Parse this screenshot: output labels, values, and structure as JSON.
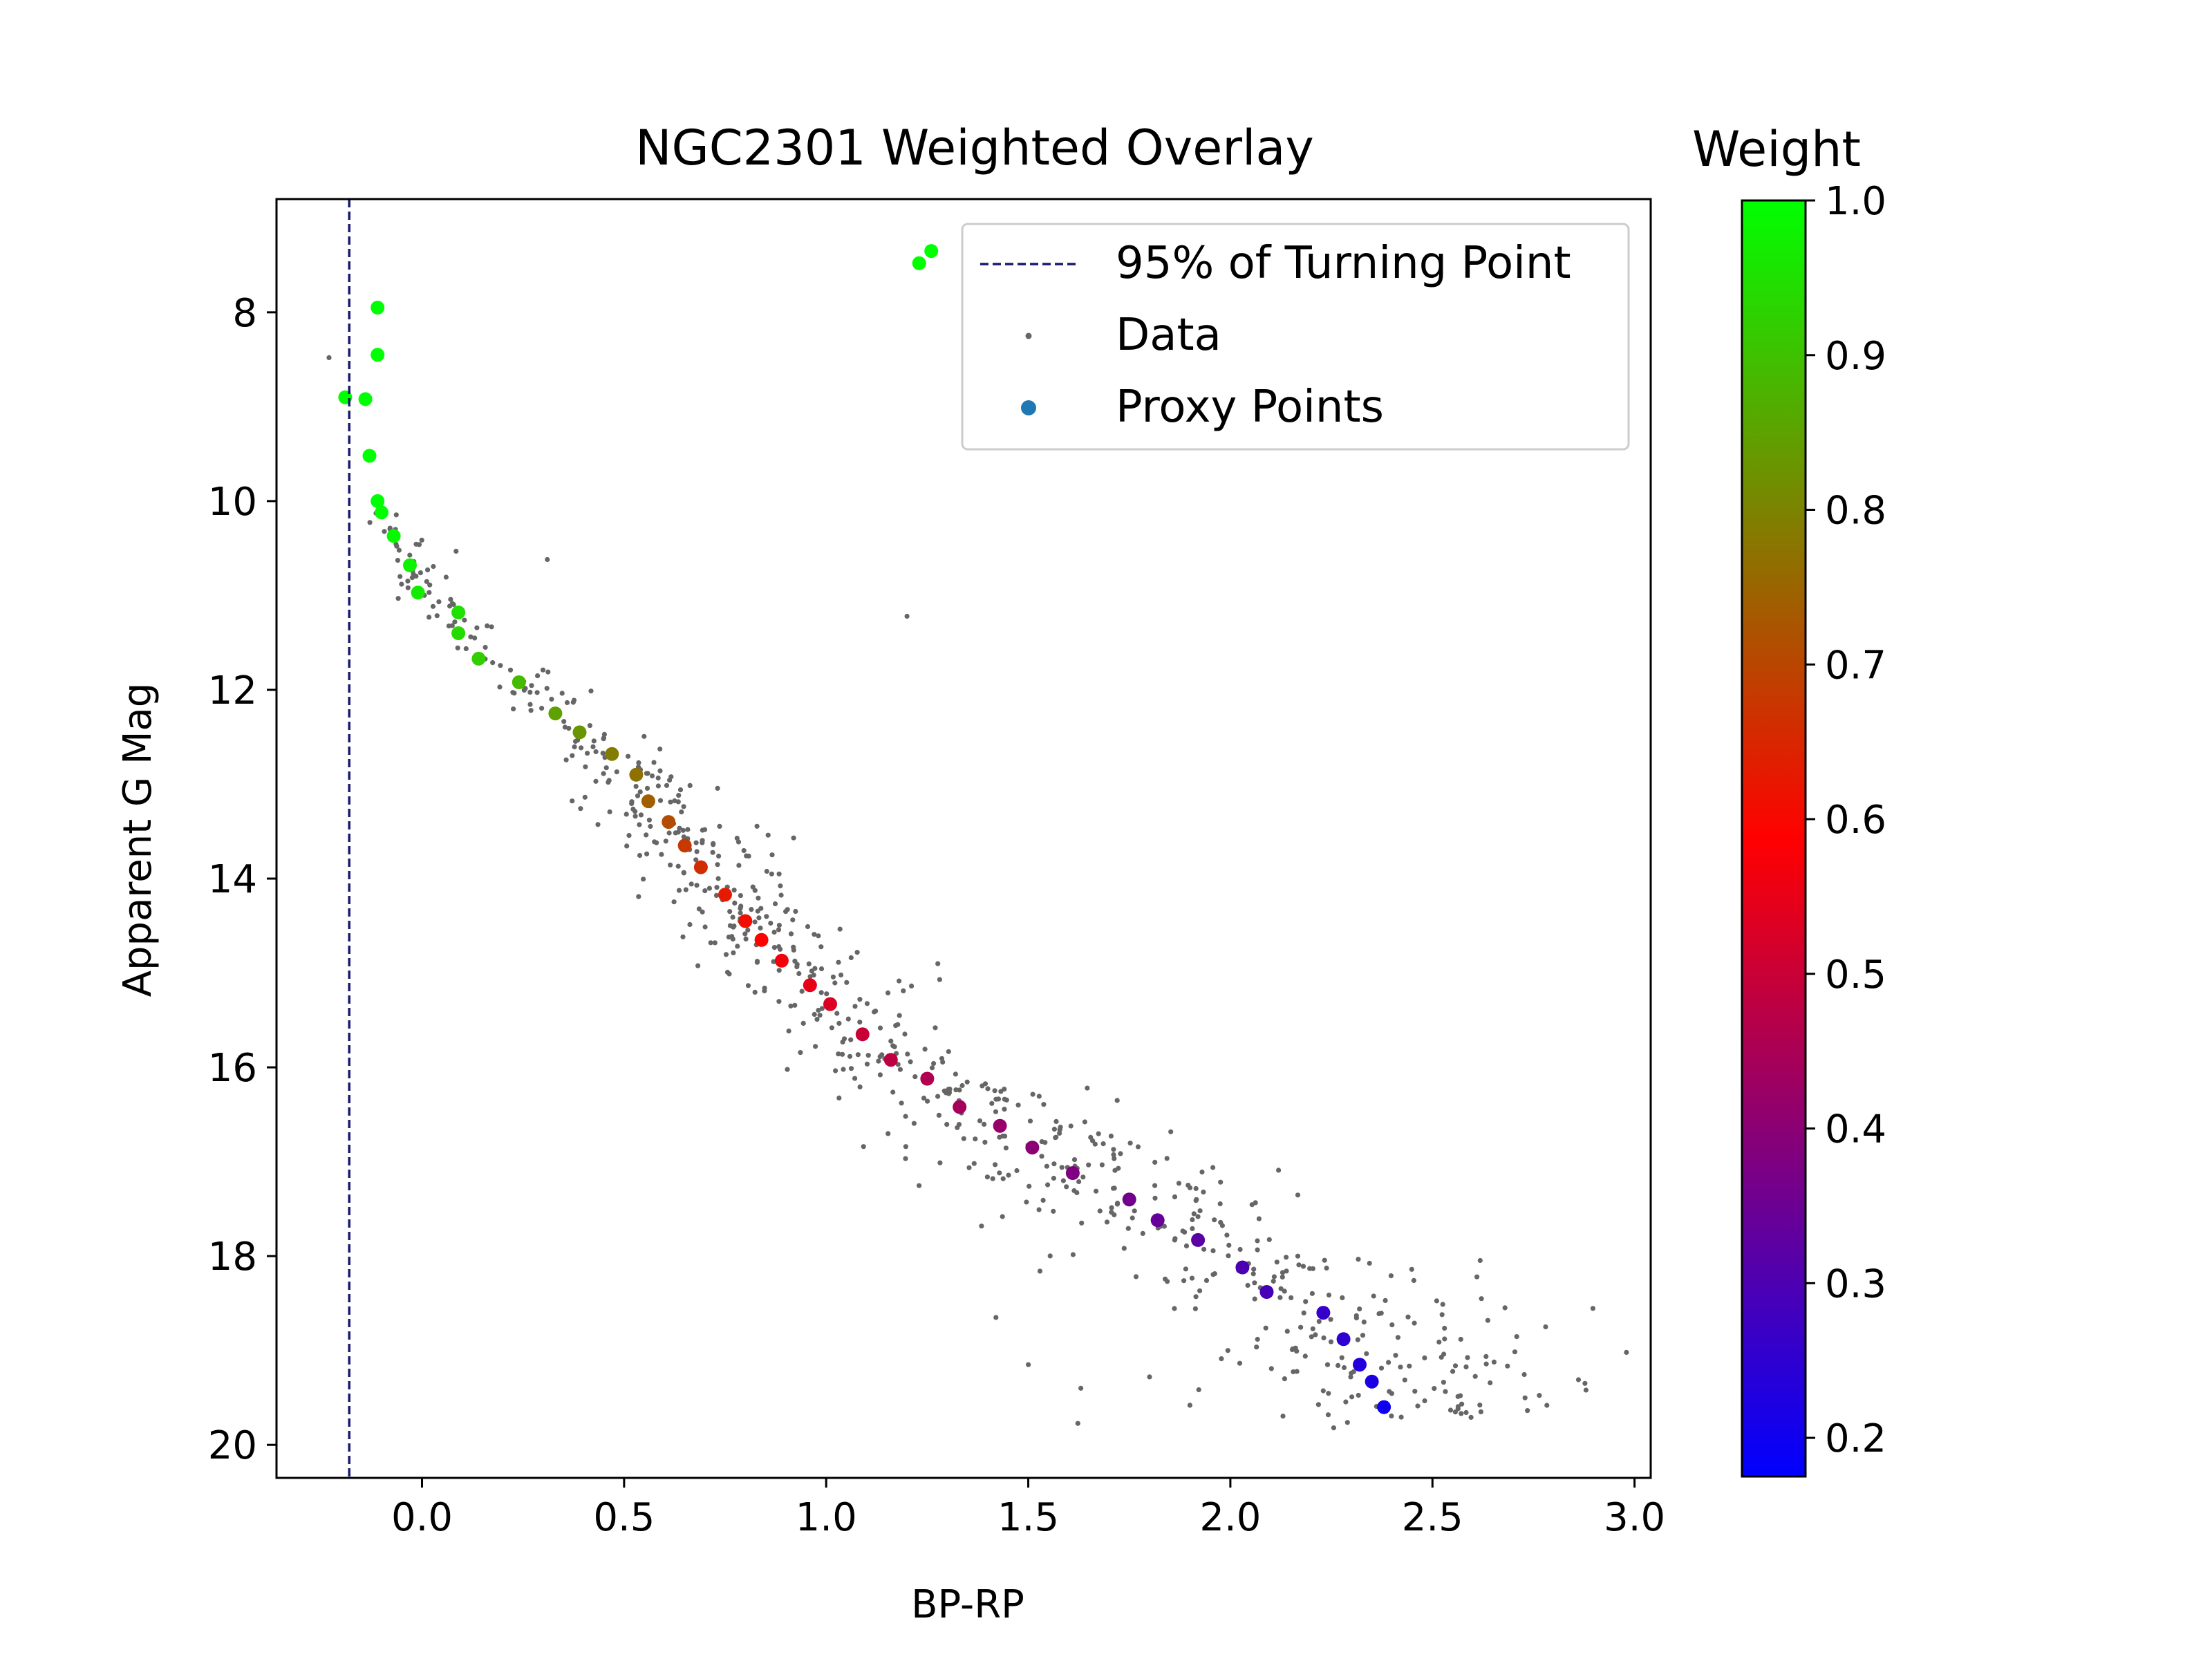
{
  "chart_data": {
    "type": "scatter",
    "title": "NGC2301 Weighted Overlay",
    "xlabel": "BP-RP",
    "ylabel": "Apparent G Mag",
    "xlim": [
      -0.36,
      3.04
    ],
    "ylim": [
      20.35,
      6.8
    ],
    "y_inverted": true,
    "grid": false,
    "legend_placement": "top-right",
    "xticks": [
      0.0,
      0.5,
      1.0,
      1.5,
      2.0,
      2.5,
      3.0
    ],
    "xtick_labels": [
      "0.0",
      "0.5",
      "1.0",
      "1.5",
      "2.0",
      "2.5",
      "3.0"
    ],
    "yticks": [
      8,
      10,
      12,
      14,
      16,
      18,
      20
    ],
    "ytick_labels": [
      "8",
      "10",
      "12",
      "14",
      "16",
      "18",
      "20"
    ],
    "vline": {
      "x": -0.18,
      "style": "dashed",
      "color": "#191970"
    },
    "legend": {
      "entries": [
        {
          "label": "95% of Turning Point",
          "kind": "dashed-line",
          "color": "#191970"
        },
        {
          "label": "Data",
          "kind": "small-dot",
          "color": "#666666"
        },
        {
          "label": "Proxy Points",
          "kind": "dot",
          "color": "#1f77b4"
        }
      ]
    },
    "colorbar": {
      "label": "Weight",
      "range": [
        0.175,
        1.0
      ],
      "ticks": [
        0.2,
        0.3,
        0.4,
        0.5,
        0.6,
        0.7,
        0.8,
        0.9,
        1.0
      ],
      "tick_labels": [
        "0.2",
        "0.3",
        "0.4",
        "0.5",
        "0.6",
        "0.7",
        "0.8",
        "0.9",
        "1.0"
      ],
      "colormap": "brg"
    },
    "proxy_points": [
      [
        -0.11,
        7.95,
        1.0
      ],
      [
        -0.11,
        8.45,
        1.0
      ],
      [
        -0.19,
        8.9,
        1.0
      ],
      [
        -0.14,
        8.92,
        1.0
      ],
      [
        -0.13,
        9.52,
        1.0
      ],
      [
        -0.11,
        10.0,
        1.0
      ],
      [
        -0.1,
        10.12,
        1.0
      ],
      [
        -0.07,
        10.37,
        0.99
      ],
      [
        -0.03,
        10.68,
        0.98
      ],
      [
        -0.01,
        10.97,
        0.97
      ],
      [
        0.09,
        11.18,
        0.95
      ],
      [
        0.09,
        11.4,
        0.94
      ],
      [
        0.14,
        11.67,
        0.92
      ],
      [
        0.24,
        11.92,
        0.89
      ],
      [
        0.33,
        12.25,
        0.85
      ],
      [
        0.39,
        12.45,
        0.83
      ],
      [
        0.47,
        12.68,
        0.79
      ],
      [
        0.53,
        12.9,
        0.77
      ],
      [
        0.56,
        13.18,
        0.74
      ],
      [
        0.61,
        13.4,
        0.71
      ],
      [
        0.65,
        13.65,
        0.68
      ],
      [
        0.69,
        13.88,
        0.66
      ],
      [
        0.75,
        14.17,
        0.63
      ],
      [
        0.8,
        14.45,
        0.61
      ],
      [
        0.84,
        14.65,
        0.59
      ],
      [
        0.89,
        14.87,
        0.57
      ],
      [
        0.96,
        15.13,
        0.55
      ],
      [
        1.01,
        15.33,
        0.53
      ],
      [
        1.09,
        15.65,
        0.5
      ],
      [
        1.16,
        15.92,
        0.48
      ],
      [
        1.25,
        16.12,
        0.46
      ],
      [
        1.33,
        16.42,
        0.44
      ],
      [
        1.43,
        16.62,
        0.42
      ],
      [
        1.51,
        16.85,
        0.4
      ],
      [
        1.61,
        17.12,
        0.38
      ],
      [
        1.75,
        17.4,
        0.36
      ],
      [
        1.82,
        17.62,
        0.34
      ],
      [
        1.92,
        17.83,
        0.32
      ],
      [
        2.03,
        18.12,
        0.3
      ],
      [
        2.09,
        18.38,
        0.29
      ],
      [
        2.23,
        18.6,
        0.26
      ],
      [
        2.28,
        18.88,
        0.25
      ],
      [
        2.32,
        19.15,
        0.23
      ],
      [
        2.35,
        19.33,
        0.22
      ],
      [
        2.38,
        19.6,
        0.2
      ],
      [
        1.23,
        7.48,
        1.0
      ],
      [
        1.26,
        7.35,
        1.0
      ]
    ],
    "outliers": [
      [
        -0.23,
        8.48
      ],
      [
        0.31,
        10.62
      ],
      [
        1.2,
        11.22
      ],
      [
        2.61,
        18.22
      ],
      [
        2.88,
        19.42
      ],
      [
        2.78,
        18.75
      ],
      [
        2.98,
        19.02
      ],
      [
        1.42,
        18.65
      ],
      [
        1.5,
        19.15
      ],
      [
        1.8,
        19.28
      ],
      [
        1.63,
        19.4
      ],
      [
        1.9,
        19.58
      ],
      [
        2.62,
        19.65
      ],
      [
        1.72,
        16.35
      ]
    ]
  }
}
